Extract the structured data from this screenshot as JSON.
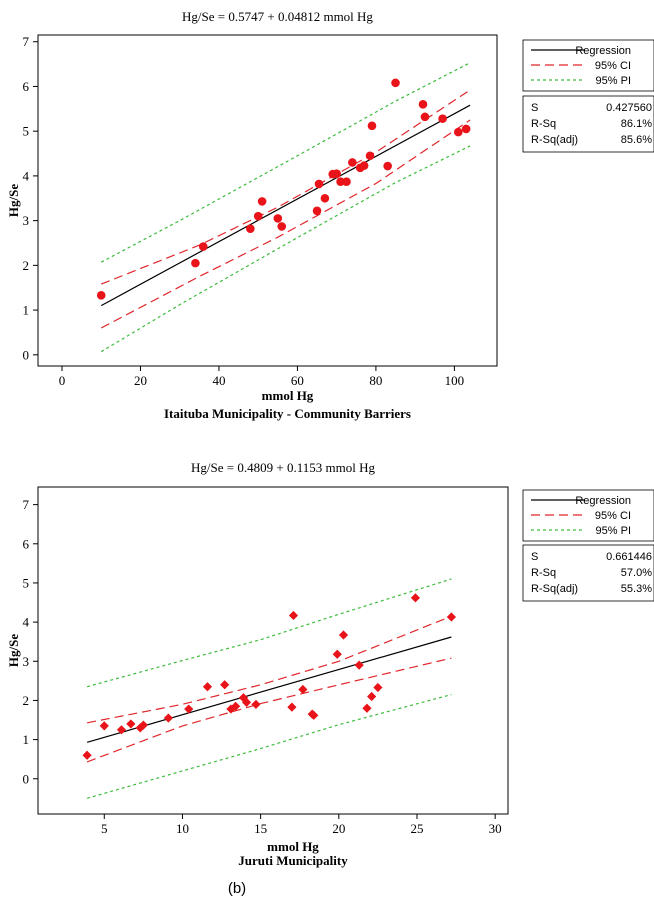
{
  "figure_label": "(b)",
  "chart_data": [
    {
      "type": "scatter",
      "title": "Hg/Se = 0.5747 + 0.04812 mmol Hg",
      "xlabel": "mmol Hg",
      "subtitle": "Itaituba Municipality - Community Barriers",
      "ylabel": "Hg/Se",
      "xlim": [
        0,
        105
      ],
      "ylim": [
        -0.25,
        7.15
      ],
      "xticks": [
        0,
        20,
        40,
        60,
        80,
        100
      ],
      "yticks": [
        0,
        1,
        2,
        3,
        4,
        5,
        6,
        7
      ],
      "grid": false,
      "legend": {
        "placement": "right",
        "entries": [
          {
            "label": "Regression",
            "color": "#000000",
            "dash": "solid"
          },
          {
            "label": "95% CI",
            "color": "#e0262c",
            "dash": "long-dash"
          },
          {
            "label": "95% PI",
            "color": "#3dbb3d",
            "dash": "short-dash"
          }
        ]
      },
      "stats": [
        {
          "label": "S",
          "value": "0.427560"
        },
        {
          "label": "R-Sq",
          "value": "86.1%"
        },
        {
          "label": "R-Sq(adj)",
          "value": "85.6%"
        }
      ],
      "marker": "circle",
      "point_color": "#e8141a",
      "points": [
        {
          "x": 10,
          "y": 1.33
        },
        {
          "x": 34,
          "y": 2.05
        },
        {
          "x": 36,
          "y": 2.42
        },
        {
          "x": 48,
          "y": 2.82
        },
        {
          "x": 50,
          "y": 3.1
        },
        {
          "x": 51,
          "y": 3.43
        },
        {
          "x": 55,
          "y": 3.05
        },
        {
          "x": 56,
          "y": 2.87
        },
        {
          "x": 65,
          "y": 3.22
        },
        {
          "x": 65.5,
          "y": 3.82
        },
        {
          "x": 67,
          "y": 3.5
        },
        {
          "x": 69,
          "y": 4.04
        },
        {
          "x": 70,
          "y": 4.05
        },
        {
          "x": 71,
          "y": 3.87
        },
        {
          "x": 72.5,
          "y": 3.87
        },
        {
          "x": 74,
          "y": 4.3
        },
        {
          "x": 76,
          "y": 4.18
        },
        {
          "x": 77,
          "y": 4.23
        },
        {
          "x": 78.5,
          "y": 4.45
        },
        {
          "x": 79,
          "y": 5.12
        },
        {
          "x": 83,
          "y": 4.22
        },
        {
          "x": 85,
          "y": 6.08
        },
        {
          "x": 92,
          "y": 5.6
        },
        {
          "x": 92.5,
          "y": 5.32
        },
        {
          "x": 97,
          "y": 5.28
        },
        {
          "x": 101,
          "y": 4.98
        },
        {
          "x": 103,
          "y": 5.05
        }
      ],
      "regression_line": [
        {
          "x": 10,
          "y": 1.1
        },
        {
          "x": 104,
          "y": 5.58
        }
      ],
      "ci_upper": [
        {
          "x": 10,
          "y": 1.58
        },
        {
          "x": 35,
          "y": 2.45
        },
        {
          "x": 55,
          "y": 3.3
        },
        {
          "x": 80,
          "y": 4.53
        },
        {
          "x": 104,
          "y": 5.92
        }
      ],
      "ci_lower": [
        {
          "x": 10,
          "y": 0.6
        },
        {
          "x": 35,
          "y": 1.75
        },
        {
          "x": 55,
          "y": 2.63
        },
        {
          "x": 80,
          "y": 3.83
        },
        {
          "x": 104,
          "y": 5.25
        }
      ],
      "pi_upper": [
        {
          "x": 10,
          "y": 2.07
        },
        {
          "x": 30,
          "y": 3.0
        },
        {
          "x": 60,
          "y": 4.45
        },
        {
          "x": 85,
          "y": 5.67
        },
        {
          "x": 104,
          "y": 6.53
        }
      ],
      "pi_lower": [
        {
          "x": 10,
          "y": 0.07
        },
        {
          "x": 30,
          "y": 1.12
        },
        {
          "x": 60,
          "y": 2.62
        },
        {
          "x": 85,
          "y": 3.85
        },
        {
          "x": 104,
          "y": 4.67
        }
      ]
    },
    {
      "type": "scatter",
      "title": "Hg/Se = 0.4809 + 0.1153 mmol Hg",
      "xlabel": "mmol Hg",
      "subtitle": "Juruti Municipality",
      "ylabel": "Hg/Se",
      "xlim": [
        3,
        30.5
      ],
      "ylim": [
        -0.9,
        7.45
      ],
      "xticks": [
        5,
        10,
        15,
        20,
        25,
        30
      ],
      "yticks": [
        0,
        1,
        2,
        3,
        4,
        5,
        6,
        7
      ],
      "grid": false,
      "legend": {
        "placement": "right",
        "entries": [
          {
            "label": "Regression",
            "color": "#000000",
            "dash": "solid"
          },
          {
            "label": "95% CI",
            "color": "#e0262c",
            "dash": "long-dash"
          },
          {
            "label": "95% PI",
            "color": "#3dbb3d",
            "dash": "short-dash"
          }
        ]
      },
      "stats": [
        {
          "label": "S",
          "value": "0.661446"
        },
        {
          "label": "R-Sq",
          "value": "57.0%"
        },
        {
          "label": "R-Sq(adj)",
          "value": "55.3%"
        }
      ],
      "marker": "diamond",
      "point_color": "#e8141a",
      "points": [
        {
          "x": 3.9,
          "y": 0.6
        },
        {
          "x": 5.0,
          "y": 1.35
        },
        {
          "x": 6.1,
          "y": 1.25
        },
        {
          "x": 6.7,
          "y": 1.4
        },
        {
          "x": 7.3,
          "y": 1.3
        },
        {
          "x": 7.5,
          "y": 1.37
        },
        {
          "x": 9.1,
          "y": 1.55
        },
        {
          "x": 10.4,
          "y": 1.78
        },
        {
          "x": 11.6,
          "y": 2.35
        },
        {
          "x": 12.7,
          "y": 2.4
        },
        {
          "x": 13.1,
          "y": 1.78
        },
        {
          "x": 13.4,
          "y": 1.85
        },
        {
          "x": 13.9,
          "y": 2.07
        },
        {
          "x": 14.1,
          "y": 1.95
        },
        {
          "x": 14.7,
          "y": 1.9
        },
        {
          "x": 17.0,
          "y": 1.83
        },
        {
          "x": 17.1,
          "y": 4.17
        },
        {
          "x": 17.7,
          "y": 2.28
        },
        {
          "x": 18.3,
          "y": 1.65
        },
        {
          "x": 18.4,
          "y": 1.62
        },
        {
          "x": 19.9,
          "y": 3.18
        },
        {
          "x": 20.3,
          "y": 3.67
        },
        {
          "x": 21.3,
          "y": 2.9
        },
        {
          "x": 21.8,
          "y": 1.8
        },
        {
          "x": 22.1,
          "y": 2.1
        },
        {
          "x": 22.5,
          "y": 2.33
        },
        {
          "x": 24.9,
          "y": 4.62
        },
        {
          "x": 27.2,
          "y": 4.13
        }
      ],
      "regression_line": [
        {
          "x": 3.9,
          "y": 0.93
        },
        {
          "x": 27.2,
          "y": 3.62
        }
      ],
      "ci_upper": [
        {
          "x": 3.9,
          "y": 1.43
        },
        {
          "x": 10,
          "y": 1.9
        },
        {
          "x": 15,
          "y": 2.4
        },
        {
          "x": 20,
          "y": 3.0
        },
        {
          "x": 27.2,
          "y": 4.15
        }
      ],
      "ci_lower": [
        {
          "x": 3.9,
          "y": 0.43
        },
        {
          "x": 10,
          "y": 1.35
        },
        {
          "x": 15,
          "y": 1.92
        },
        {
          "x": 20,
          "y": 2.4
        },
        {
          "x": 27.2,
          "y": 3.08
        }
      ],
      "pi_upper": [
        {
          "x": 3.9,
          "y": 2.35
        },
        {
          "x": 10,
          "y": 3.02
        },
        {
          "x": 15,
          "y": 3.55
        },
        {
          "x": 20,
          "y": 4.2
        },
        {
          "x": 27.2,
          "y": 5.1
        }
      ],
      "pi_lower": [
        {
          "x": 3.9,
          "y": -0.5
        },
        {
          "x": 10,
          "y": 0.2
        },
        {
          "x": 15,
          "y": 0.77
        },
        {
          "x": 20,
          "y": 1.38
        },
        {
          "x": 27.2,
          "y": 2.15
        }
      ]
    }
  ]
}
